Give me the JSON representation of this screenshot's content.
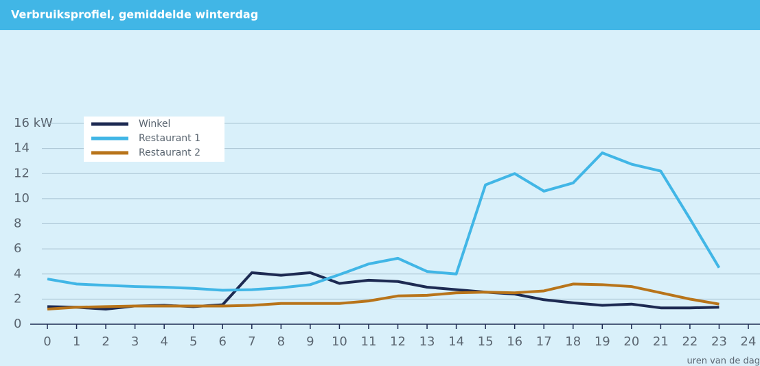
{
  "chart_data": {
    "type": "line",
    "title": "Verbruiksprofiel, gemiddelde winterdag",
    "xlabel": "uren van de dag",
    "x": [
      0,
      1,
      2,
      3,
      4,
      5,
      6,
      7,
      8,
      9,
      10,
      11,
      12,
      13,
      14,
      15,
      16,
      17,
      18,
      19,
      20,
      21,
      22,
      23
    ],
    "series": [
      {
        "name": "Winkel",
        "color": "#1d2a52",
        "values": [
          1.4,
          1.35,
          1.2,
          1.45,
          1.5,
          1.4,
          1.55,
          4.1,
          3.9,
          4.1,
          3.25,
          3.5,
          3.4,
          2.95,
          2.75,
          2.55,
          2.4,
          1.95,
          1.7,
          1.5,
          1.6,
          1.3,
          1.3,
          1.35
        ]
      },
      {
        "name": "Restaurant 1",
        "color": "#41b6e6",
        "values": [
          3.6,
          3.2,
          3.1,
          3.0,
          2.95,
          2.85,
          2.7,
          2.75,
          2.9,
          3.15,
          3.95,
          4.8,
          5.25,
          4.2,
          4.0,
          11.1,
          12.0,
          10.6,
          11.25,
          13.65,
          12.75,
          12.2,
          8.4,
          4.5
        ]
      },
      {
        "name": "Restaurant 2",
        "color": "#b8741a",
        "values": [
          1.2,
          1.35,
          1.4,
          1.45,
          1.45,
          1.45,
          1.45,
          1.5,
          1.65,
          1.65,
          1.65,
          1.85,
          2.25,
          2.3,
          2.5,
          2.55,
          2.5,
          2.65,
          3.2,
          3.15,
          3.0,
          2.5,
          2.0,
          1.6
        ]
      }
    ],
    "xlim": [
      0,
      24
    ],
    "xticks": [
      0,
      1,
      2,
      3,
      4,
      5,
      6,
      7,
      8,
      9,
      10,
      11,
      12,
      13,
      14,
      15,
      16,
      17,
      18,
      19,
      20,
      21,
      22,
      23,
      24
    ],
    "ylim": [
      0,
      16
    ],
    "yticks": [
      0,
      2,
      4,
      6,
      8,
      10,
      12,
      {
        "value": 16,
        "label": "16 kW"
      },
      14
    ],
    "grid": true,
    "legend": "upper left"
  }
}
